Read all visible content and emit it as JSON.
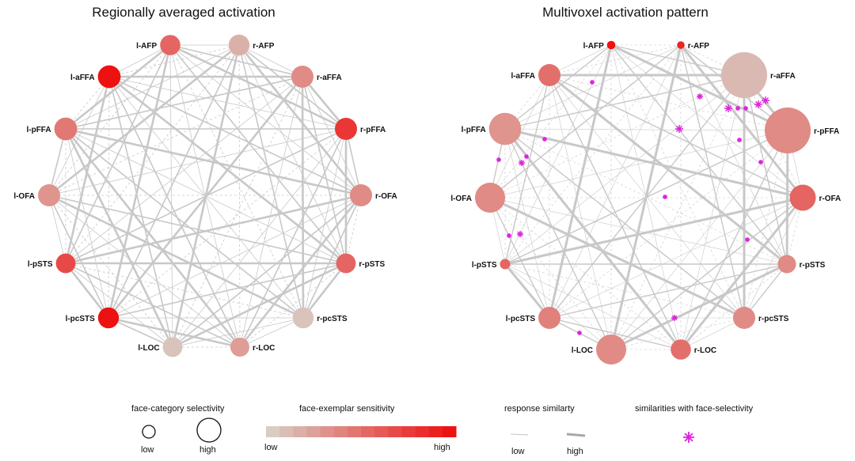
{
  "panels": {
    "left_title": "Regionally averaged activation",
    "right_title": "Multivoxel activation pattern"
  },
  "colors": {
    "node_low": "#d8ccc4",
    "node_high": "#ee1111",
    "edge": "#c8c8c8",
    "star": "#e020e0"
  },
  "legend": {
    "selectivity_title": "face-category selectivity",
    "selectivity_low": "low",
    "selectivity_high": "high",
    "sensitivity_title": "face-exemplar sensitivity",
    "sensitivity_low": "low",
    "sensitivity_high": "high",
    "similarity_title": "response similarty",
    "similarity_low": "low",
    "similarity_high": "high",
    "star_title": "similarities with face-selectivity"
  },
  "nodes": [
    "l-AFP",
    "r-AFP",
    "l-aFFA",
    "r-aFFA",
    "l-pFFA",
    "r-pFFA",
    "l-OFA",
    "r-OFA",
    "l-pSTS",
    "r-pSTS",
    "l-pcSTS",
    "r-pcSTS",
    "l-LOC",
    "r-LOC"
  ],
  "left_graph": {
    "selectivity": [
      0.35,
      0.4,
      0.55,
      0.5,
      0.55,
      0.5,
      0.5,
      0.5,
      0.3,
      0.3,
      0.4,
      0.4,
      0.3,
      0.25
    ],
    "sensitivity": [
      0.55,
      0.15,
      1.0,
      0.35,
      0.45,
      0.8,
      0.3,
      0.35,
      0.7,
      0.55,
      1.0,
      0.05,
      0.05,
      0.25
    ]
  },
  "right_graph": {
    "selectivity": [
      0.05,
      0.03,
      0.4,
      1.0,
      0.65,
      1.0,
      0.6,
      0.5,
      0.1,
      0.3,
      0.4,
      0.4,
      0.6,
      0.35
    ],
    "sensitivity": [
      1.0,
      0.9,
      0.5,
      0.1,
      0.3,
      0.35,
      0.35,
      0.55,
      0.55,
      0.35,
      0.4,
      0.35,
      0.35,
      0.5
    ]
  }
}
